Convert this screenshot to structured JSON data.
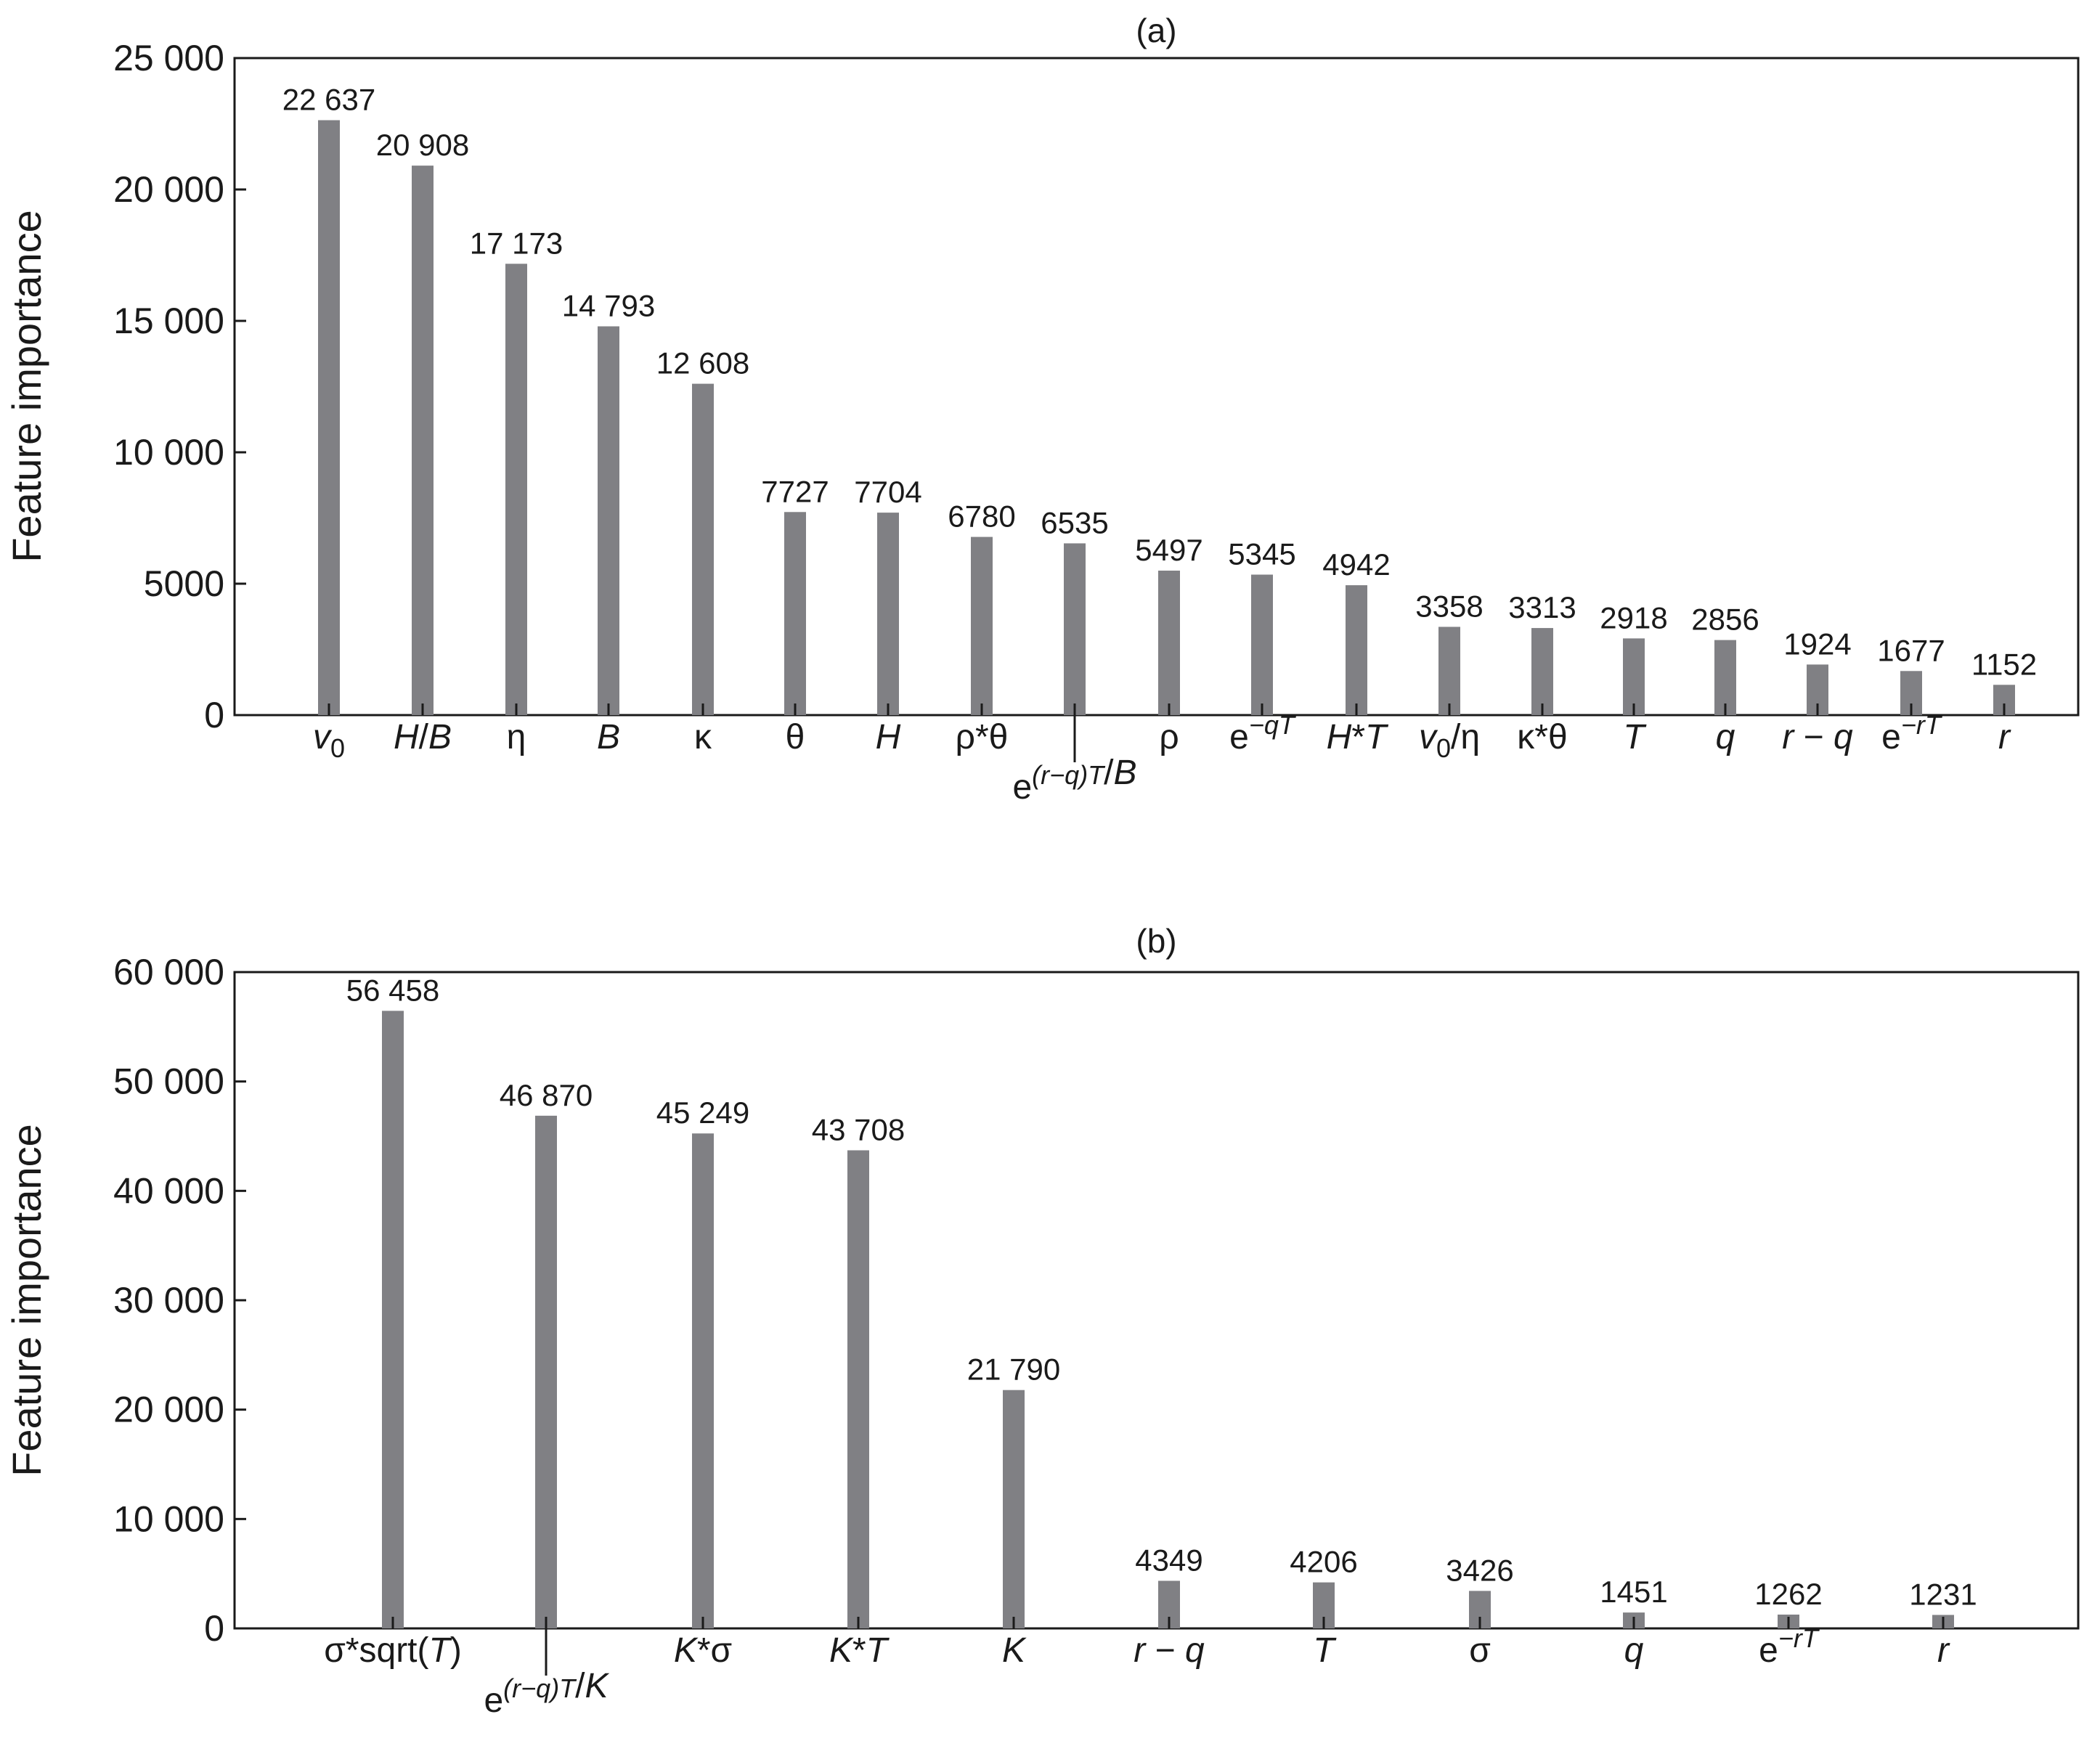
{
  "chart_data": [
    {
      "type": "bar",
      "title": "(a)",
      "xlabel": "",
      "ylabel": "Feature importance",
      "ylim": [
        0,
        25000
      ],
      "yticks": [
        "0",
        "5000",
        "10 000",
        "15 000",
        "20 000",
        "25 000"
      ],
      "grid": false,
      "color": "#808084",
      "categories": [
        "v0",
        "H/B",
        "η",
        "B",
        "κ",
        "θ",
        "H",
        "ρ*θ",
        "e^(r−q)T/B",
        "ρ",
        "e^−qT",
        "H*T",
        "v0/η",
        "κ*θ",
        "T",
        "q",
        "r − q",
        "e^−rT",
        "r"
      ],
      "values": [
        22637,
        20908,
        17173,
        14793,
        12608,
        7727,
        7704,
        6780,
        6535,
        5497,
        5345,
        4942,
        3358,
        3313,
        2918,
        2856,
        1924,
        1677,
        1152
      ],
      "value_labels": [
        "22 637",
        "20 908",
        "17 173",
        "14 793",
        "12 608",
        "7727",
        "7704",
        "6780",
        "6535",
        "5497",
        "5345",
        "4942",
        "3358",
        "3313",
        "2918",
        "2856",
        "1924",
        "1677",
        "1152"
      ]
    },
    {
      "type": "bar",
      "title": "(b)",
      "xlabel": "",
      "ylabel": "Feature importance",
      "ylim": [
        0,
        60000
      ],
      "yticks": [
        "0",
        "10 000",
        "20 000",
        "30 000",
        "40 000",
        "50 000",
        "60 000"
      ],
      "grid": false,
      "color": "#808084",
      "categories": [
        "σ*sqrt(T)",
        "e^(r−q)T/K",
        "K*σ",
        "K*T",
        "K",
        "r − q",
        "T",
        "σ",
        "q",
        "e^−rT",
        "r"
      ],
      "values": [
        56458,
        46870,
        45249,
        43708,
        21790,
        4349,
        4206,
        3426,
        1451,
        1262,
        1231
      ],
      "value_labels": [
        "56 458",
        "46 870",
        "45 249",
        "43 708",
        "21 790",
        "4349",
        "4206",
        "3426",
        "1451",
        "1262",
        "1231"
      ]
    }
  ]
}
